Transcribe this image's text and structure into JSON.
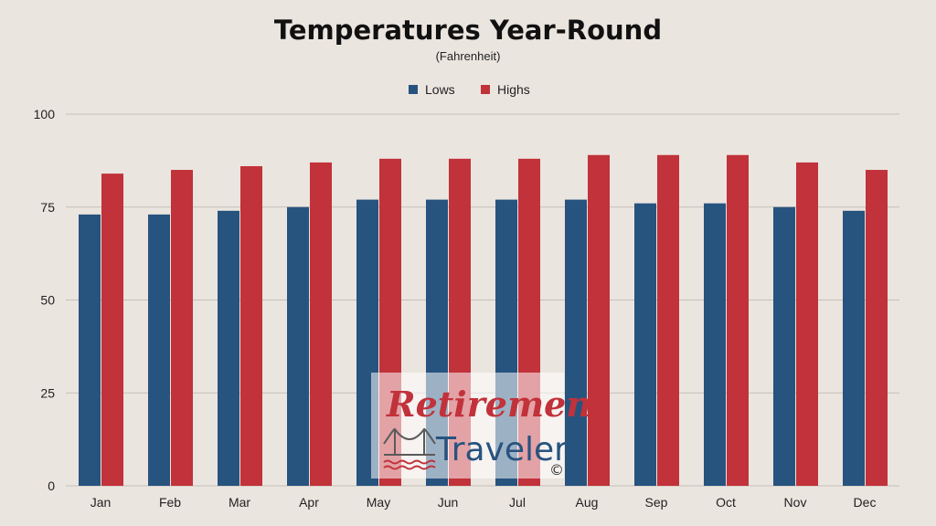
{
  "chart_data": {
    "type": "bar",
    "title": "Temperatures Year-Round",
    "subtitle": "(Fahrenheit)",
    "categories": [
      "Jan",
      "Feb",
      "Mar",
      "Apr",
      "May",
      "Jun",
      "Jul",
      "Aug",
      "Sep",
      "Oct",
      "Nov",
      "Dec"
    ],
    "series": [
      {
        "name": "Lows",
        "color": "#27537f",
        "values": [
          73,
          73,
          74,
          75,
          77,
          77,
          77,
          77,
          76,
          76,
          75,
          74
        ]
      },
      {
        "name": "Highs",
        "color": "#c1323a",
        "values": [
          84,
          85,
          86,
          87,
          88,
          88,
          88,
          89,
          89,
          89,
          87,
          85
        ]
      }
    ],
    "ylim": [
      0,
      100
    ],
    "yticks": [
      "0",
      "25",
      "50",
      "75",
      "100"
    ],
    "grid": true,
    "legend_position": "top-center"
  },
  "watermark": {
    "line1": "Retirement",
    "line2": "Travelers",
    "copyright": "©",
    "icon": "bridge-icon"
  }
}
